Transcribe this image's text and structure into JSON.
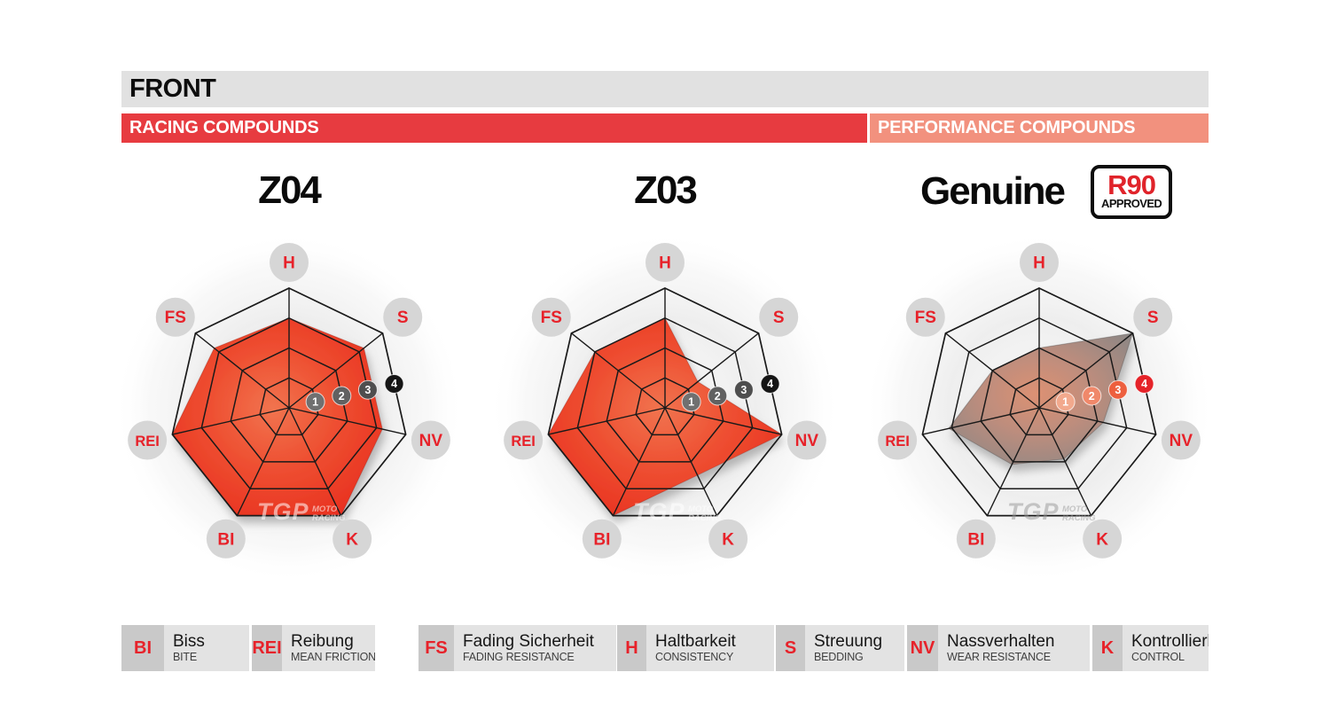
{
  "header": {
    "title": "FRONT",
    "racing_label": "RACING COMPOUNDS",
    "performance_label": "PERFORMANCE COMPOUNDS"
  },
  "watermark": {
    "logo": "TGP",
    "sub1": "MOTO",
    "sub2": "RACING"
  },
  "legend": {
    "items": [
      {
        "abbr": "BI",
        "german": "Biss",
        "english": "BITE"
      },
      {
        "abbr": "REI",
        "german": "Reibung",
        "english": "MEAN FRICTION"
      },
      {
        "abbr": "FS",
        "german": "Fading Sicherheit",
        "english": "FADING RESISTANCE"
      },
      {
        "abbr": "H",
        "german": "Haltbarkeit",
        "english": "CONSISTENCY"
      },
      {
        "abbr": "S",
        "german": "Streuung",
        "english": "BEDDING"
      },
      {
        "abbr": "NV",
        "german": "Nassverhalten",
        "english": "WEAR RESISTANCE"
      },
      {
        "abbr": "K",
        "german": "Kontrollierbarkeit",
        "english": "CONTROL"
      }
    ]
  },
  "chart_data": [
    {
      "type": "radar",
      "title": "Z04",
      "group": "RACING COMPOUNDS",
      "style": "red",
      "axes": [
        "H",
        "S",
        "NV",
        "K",
        "BI",
        "REI",
        "FS"
      ],
      "scale": {
        "min": 0,
        "max": 4,
        "ticks": [
          1,
          2,
          3,
          4
        ]
      },
      "values": {
        "H": 3.0,
        "S": 3.2,
        "NV": 3.2,
        "K": 4.0,
        "BI": 4.0,
        "REI": 4.0,
        "FS": 3.2
      }
    },
    {
      "type": "radar",
      "title": "Z03",
      "group": "RACING COMPOUNDS",
      "style": "red",
      "axes": [
        "H",
        "S",
        "NV",
        "K",
        "BI",
        "REI",
        "FS"
      ],
      "scale": {
        "min": 0,
        "max": 4,
        "ticks": [
          1,
          2,
          3,
          4
        ]
      },
      "values": {
        "H": 3.0,
        "S": 1.4,
        "NV": 4.0,
        "K": 2.5,
        "BI": 4.0,
        "REI": 4.0,
        "FS": 3.0
      }
    },
    {
      "type": "radar",
      "title": "Genuine",
      "group": "PERFORMANCE COMPOUNDS",
      "style": "gray",
      "approval_badge": {
        "line1": "R90",
        "line2": "APPROVED"
      },
      "axes": [
        "H",
        "S",
        "NV",
        "K",
        "BI",
        "REI",
        "FS"
      ],
      "scale": {
        "min": 0,
        "max": 4,
        "ticks": [
          1,
          2,
          3,
          4
        ]
      },
      "values": {
        "H": 2.0,
        "S": 4.0,
        "NV": 2.2,
        "K": 1.9,
        "BI": 2.1,
        "REI": 3.1,
        "FS": 2.0
      }
    }
  ],
  "colors": {
    "header_bar": "#e1e1e1",
    "racing_bar": "#e73b40",
    "performance_bar": "#f2917e",
    "axis_label": "#e7222a",
    "label_circle": "#d6d6d6",
    "grid_line": "#1a1a1a",
    "red_fill": {
      "center": "#f1744f",
      "mid": "#ee4f31",
      "edge": "#e7271b"
    },
    "gray_fill": {
      "center": "#dc9173",
      "mid": "#bd8d7d",
      "edge": "#868686"
    },
    "tick_badges_racing": [
      "#707070",
      "#616161",
      "#4e4e4e",
      "#161616"
    ],
    "tick_badges_performance": [
      "#f2a98d",
      "#f0886a",
      "#ed5f3e",
      "#e52329"
    ]
  }
}
